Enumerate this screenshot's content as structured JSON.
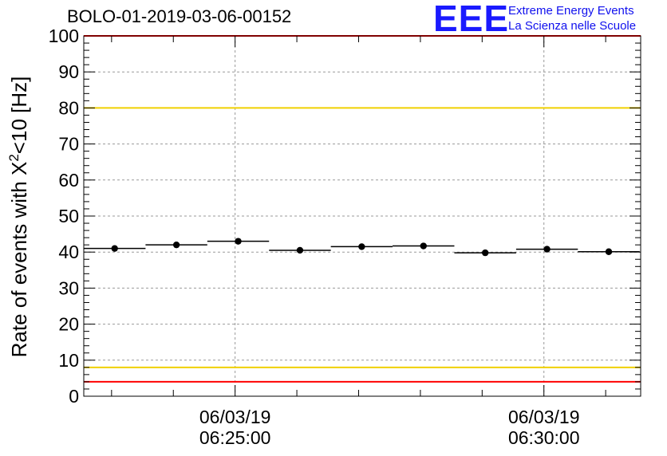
{
  "header": {
    "run_title": "BOLO-01-2019-03-06-00152",
    "logo_mark": "EEE",
    "logo_line1": "Extreme Energy Events",
    "logo_line2": "La Scienza nelle Scuole"
  },
  "chart_data": {
    "type": "scatter",
    "title": "BOLO-01-2019-03-06-00152",
    "ylabel_prefix": "Rate of events with X",
    "ylabel_sup": "2",
    "ylabel_suffix": "<10 [Hz]",
    "xlabel": "",
    "ylim": [
      0,
      100
    ],
    "yticks": [
      0,
      10,
      20,
      30,
      40,
      50,
      60,
      70,
      80,
      90,
      100
    ],
    "x_time_range_seconds": [
      "06:22:33",
      "06:31:34"
    ],
    "xtick_labels": [
      {
        "time": "06:25:00",
        "date": "06/03/19"
      },
      {
        "time": "06:30:00",
        "date": "06/03/19"
      }
    ],
    "grid": true,
    "points": [
      {
        "x_start": "06:22:33",
        "x_end": "06:23:33",
        "y": 41.0
      },
      {
        "x_start": "06:23:33",
        "x_end": "06:24:33",
        "y": 42.0
      },
      {
        "x_start": "06:24:33",
        "x_end": "06:25:33",
        "y": 43.0
      },
      {
        "x_start": "06:25:33",
        "x_end": "06:26:33",
        "y": 40.5
      },
      {
        "x_start": "06:26:33",
        "x_end": "06:27:33",
        "y": 41.5
      },
      {
        "x_start": "06:27:33",
        "x_end": "06:28:33",
        "y": 41.7
      },
      {
        "x_start": "06:28:33",
        "x_end": "06:29:33",
        "y": 39.8
      },
      {
        "x_start": "06:29:33",
        "x_end": "06:30:33",
        "y": 40.8
      },
      {
        "x_start": "06:30:33",
        "x_end": "06:31:33",
        "y": 40.1
      }
    ],
    "reference_lines": [
      {
        "y": 100,
        "color": "#ff0000"
      },
      {
        "y": 80,
        "color": "#f0d000"
      },
      {
        "y": 8,
        "color": "#f0d000"
      },
      {
        "y": 4,
        "color": "#ff0000"
      }
    ]
  }
}
